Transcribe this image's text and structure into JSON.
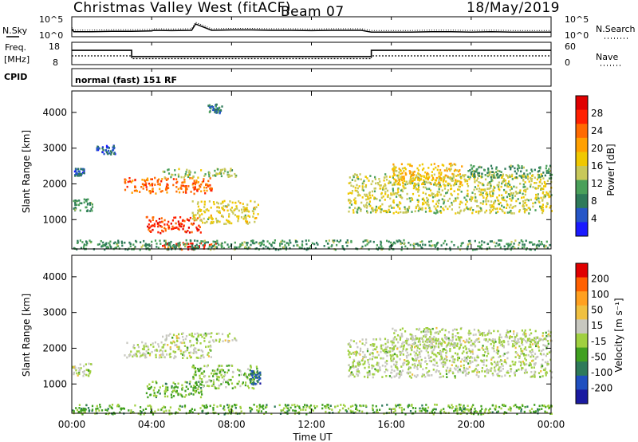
{
  "title": {
    "station": "Christmas Valley West (fitACF)",
    "beam": "Beam 07",
    "date": "18/May/2019"
  },
  "nsky_panel": {
    "left_label": "N.Sky",
    "right_label": "N.Search",
    "left_ticks": [
      "10^5",
      "10^0"
    ],
    "right_ticks": [
      "10^5",
      "10^0"
    ]
  },
  "freq_panel": {
    "left_label_line1": "Freq.",
    "left_label_line2": "[MHz]",
    "left_ticks": [
      "18",
      "8"
    ],
    "right_ticks": [
      "60",
      "0"
    ],
    "right_label": "Nave"
  },
  "cpid": {
    "label": "CPID",
    "value": "normal (fast) 151 RF"
  },
  "colors": {
    "power_scale": [
      "#1a1aff",
      "#2656c8",
      "#2e7a5a",
      "#4aa05a",
      "#c8c85a",
      "#f0c800",
      "#ffa000",
      "#ff6a00",
      "#ff2000",
      "#e00000"
    ],
    "velocity_scale": [
      "#e00000",
      "#ff6000",
      "#ffa020",
      "#f0c040",
      "#c8c8c0",
      "#a0d040",
      "#40a020",
      "#2e7a5a",
      "#2050c0",
      "#1a1aa0"
    ],
    "ground_scatter": "#c8c8c0"
  },
  "chart_data": [
    {
      "type": "line",
      "name": "nsky_search_noise",
      "xlabel": "",
      "ylabel": "N.Sky",
      "x_unit": "hours UT",
      "xlim": [
        0,
        24
      ],
      "x": [
        0,
        0.1,
        1,
        2,
        3,
        4,
        4.1,
        5,
        6,
        6.2,
        7,
        8,
        9,
        10,
        11,
        12,
        13,
        14,
        14.5,
        15,
        16,
        17,
        18,
        19,
        20,
        21,
        22,
        23,
        24
      ],
      "values_log10": [
        2,
        1.2,
        1.2,
        1.3,
        1.3,
        1.4,
        1.6,
        1.5,
        1.6,
        3.4,
        1.6,
        1.7,
        1.7,
        1.6,
        1.6,
        1.5,
        1.6,
        1.6,
        1.6,
        1.1,
        1.1,
        1.1,
        1.2,
        1.2,
        1.1,
        1.2,
        1.1,
        1.1,
        1.1
      ],
      "ylim_log10": [
        0,
        5
      ]
    },
    {
      "type": "line",
      "name": "frequency_and_nave",
      "xlabel": "",
      "ylabel": "Freq. [MHz]",
      "xlim": [
        0,
        24
      ],
      "series": [
        {
          "name": "Freq.",
          "x": [
            0,
            3,
            3,
            15,
            15,
            24
          ],
          "values": [
            14.5,
            14.5,
            11.5,
            11.5,
            14.5,
            14.5
          ]
        },
        {
          "name": "Nave",
          "x": [
            0,
            3,
            3,
            15,
            15,
            24
          ],
          "values": [
            23,
            23,
            15,
            15,
            23,
            23
          ]
        }
      ],
      "freq_ylim": [
        8,
        18
      ],
      "nave_ylim": [
        0,
        60
      ]
    },
    {
      "type": "heatmap",
      "name": "power",
      "xlabel": "",
      "ylabel": "Slant Range [km]",
      "xlim": [
        0,
        24
      ],
      "ylim": [
        180,
        4600
      ],
      "yticks": [
        1000,
        2000,
        3000,
        4000
      ],
      "colorbar": {
        "label": "Power [dB]",
        "ticks": [
          4,
          8,
          12,
          16,
          20,
          24,
          28
        ],
        "range": [
          0,
          32
        ]
      },
      "regions": [
        {
          "t0": 2.6,
          "t1": 7.0,
          "r0": 1750,
          "r1": 2200,
          "value": 24
        },
        {
          "t0": 4.5,
          "t1": 8.2,
          "r0": 2200,
          "r1": 2450,
          "value": 13
        },
        {
          "t0": 3.7,
          "t1": 6.5,
          "r0": 650,
          "r1": 1100,
          "value": 27
        },
        {
          "t0": 6.0,
          "t1": 9.3,
          "r0": 900,
          "r1": 1550,
          "value": 16
        },
        {
          "t0": 0.0,
          "t1": 1.0,
          "r0": 1250,
          "r1": 1600,
          "value": 10
        },
        {
          "t0": 0.1,
          "t1": 0.6,
          "r0": 2250,
          "r1": 2450,
          "value": 6
        },
        {
          "t0": 1.2,
          "t1": 2.2,
          "r0": 2850,
          "r1": 3100,
          "value": 5
        },
        {
          "t0": 6.8,
          "t1": 7.5,
          "r0": 4000,
          "r1": 4250,
          "value": 8
        },
        {
          "t0": 13.8,
          "t1": 24.0,
          "r0": 1200,
          "r1": 2300,
          "value": 15
        },
        {
          "t0": 16.0,
          "t1": 19.5,
          "r0": 2000,
          "r1": 2600,
          "value": 18
        },
        {
          "t0": 19.8,
          "t1": 24.0,
          "r0": 2200,
          "r1": 2550,
          "value": 10
        },
        {
          "t0": 4.5,
          "t1": 7.2,
          "r0": 180,
          "r1": 380,
          "value": 28
        },
        {
          "t0": 0.0,
          "t1": 24.0,
          "r0": 180,
          "r1": 450,
          "value": 10
        }
      ]
    },
    {
      "type": "heatmap",
      "name": "velocity",
      "xlabel": "Time UT",
      "ylabel": "Slant Range [km]",
      "xlim": [
        0,
        24
      ],
      "ylim": [
        180,
        4600
      ],
      "yticks": [
        1000,
        2000,
        3000,
        4000
      ],
      "xticks": [
        "00:00",
        "04:00",
        "08:00",
        "12:00",
        "16:00",
        "20:00",
        "00:00"
      ],
      "colorbar": {
        "label": "Velocity [m s⁻¹]",
        "ticks": [
          200,
          100,
          50,
          15,
          -15,
          -50,
          -100,
          -200
        ],
        "range": [
          -250,
          250
        ]
      },
      "regions": [
        {
          "t0": 2.6,
          "t1": 7.0,
          "r0": 1750,
          "r1": 2200,
          "value": 0
        },
        {
          "t0": 4.5,
          "t1": 8.2,
          "r0": 2200,
          "r1": 2450,
          "value": 0
        },
        {
          "t0": 3.7,
          "t1": 6.5,
          "r0": 650,
          "r1": 1100,
          "value": -60
        },
        {
          "t0": 6.0,
          "t1": 9.3,
          "r0": 900,
          "r1": 1550,
          "value": -30
        },
        {
          "t0": 8.9,
          "t1": 9.4,
          "r0": 1000,
          "r1": 1400,
          "value": -150
        },
        {
          "t0": 0.0,
          "t1": 1.0,
          "r0": 1250,
          "r1": 1600,
          "value": 0
        },
        {
          "t0": 13.8,
          "t1": 24.0,
          "r0": 1200,
          "r1": 2300,
          "value": 0
        },
        {
          "t0": 16.0,
          "t1": 19.5,
          "r0": 2000,
          "r1": 2600,
          "value": 0
        },
        {
          "t0": 19.8,
          "t1": 24.0,
          "r0": 2200,
          "r1": 2550,
          "value": 0
        },
        {
          "t0": 0.0,
          "t1": 24.0,
          "r0": 180,
          "r1": 450,
          "value": -60
        }
      ]
    }
  ]
}
